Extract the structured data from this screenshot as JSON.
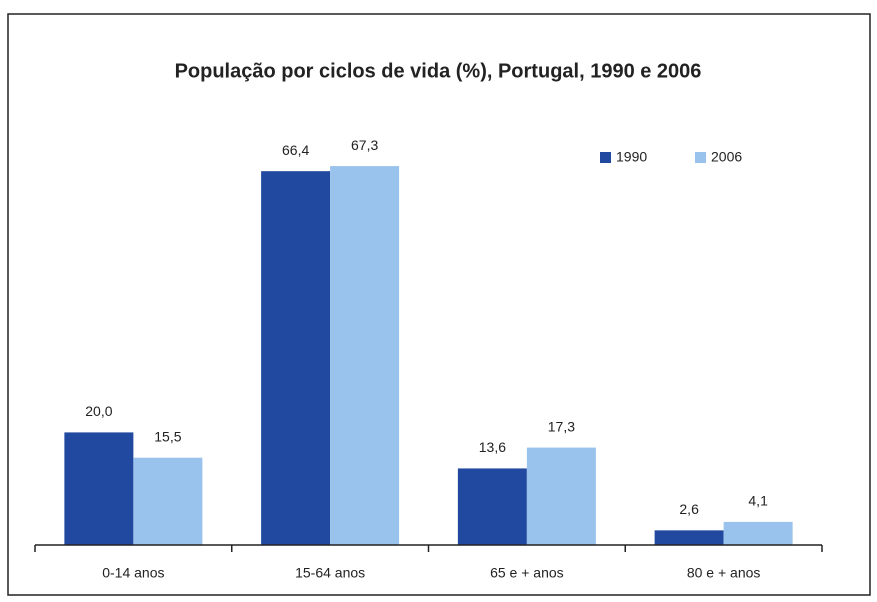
{
  "chart_data": {
    "type": "bar",
    "title": "População por ciclos de vida (%), Portugal, 1990 e 2006",
    "categories": [
      "0-14 anos",
      "15-64 anos",
      "65 e + anos",
      "80 e + anos"
    ],
    "series": [
      {
        "name": "1990",
        "color": "#2149a0",
        "values": [
          20.0,
          66.4,
          13.6,
          2.6
        ],
        "value_labels": [
          "20,0",
          "66,4",
          "13,6",
          "2,6"
        ]
      },
      {
        "name": "2006",
        "color": "#99c2ec",
        "values": [
          15.5,
          67.3,
          17.3,
          4.1
        ],
        "value_labels": [
          "15,5",
          "67,3",
          "17,3",
          "4,1"
        ]
      }
    ],
    "legend": "top-right"
  }
}
